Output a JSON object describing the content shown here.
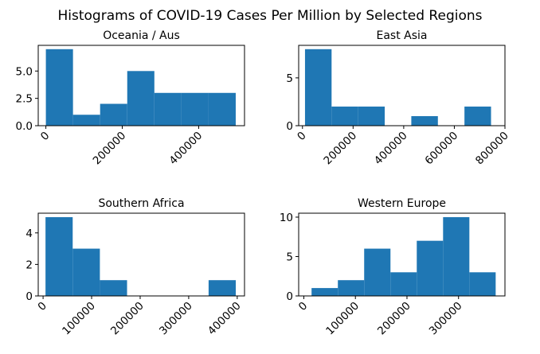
{
  "figure_title": "Histograms of COVID-19 Cases Per Million by Selected Regions",
  "bar_color": "#1f77b4",
  "chart_data": [
    {
      "type": "bar",
      "title": "Oceania / Aus",
      "xlabel": "",
      "ylabel": "",
      "xlim": [
        -20000,
        520000
      ],
      "ylim": [
        0,
        7.35
      ],
      "xticks": [
        0,
        200000,
        400000
      ],
      "yticks": [
        0.0,
        2.5,
        5.0
      ],
      "ytick_labels": [
        "0.0",
        "2.5",
        "5.0"
      ],
      "bins": [
        {
          "start": 0,
          "end": 71000,
          "count": 7
        },
        {
          "start": 71000,
          "end": 142000,
          "count": 1
        },
        {
          "start": 142000,
          "end": 213000,
          "count": 2
        },
        {
          "start": 213000,
          "end": 284000,
          "count": 5
        },
        {
          "start": 284000,
          "end": 355000,
          "count": 3
        },
        {
          "start": 355000,
          "end": 426000,
          "count": 3
        },
        {
          "start": 426000,
          "end": 497000,
          "count": 3
        }
      ]
    },
    {
      "type": "bar",
      "title": "East Asia",
      "xlabel": "",
      "ylabel": "",
      "xlim": [
        -15000,
        800000
      ],
      "ylim": [
        0,
        8.4
      ],
      "xticks": [
        0,
        200000,
        400000,
        600000,
        800000
      ],
      "yticks": [
        0,
        5
      ],
      "ytick_labels": [
        "0",
        "5"
      ],
      "bins": [
        {
          "start": 10000,
          "end": 115000,
          "count": 8
        },
        {
          "start": 115000,
          "end": 220000,
          "count": 2
        },
        {
          "start": 220000,
          "end": 325000,
          "count": 2
        },
        {
          "start": 325000,
          "end": 430000,
          "count": 0
        },
        {
          "start": 430000,
          "end": 535000,
          "count": 1
        },
        {
          "start": 535000,
          "end": 640000,
          "count": 0
        },
        {
          "start": 640000,
          "end": 745000,
          "count": 2
        }
      ]
    },
    {
      "type": "bar",
      "title": "Southern Africa",
      "xlabel": "",
      "ylabel": "",
      "xlim": [
        -10000,
        415000
      ],
      "ylim": [
        0,
        5.25
      ],
      "xticks": [
        0,
        100000,
        200000,
        300000,
        400000
      ],
      "yticks": [
        0,
        2,
        4
      ],
      "ytick_labels": [
        "0",
        "2",
        "4"
      ],
      "bins": [
        {
          "start": 5000,
          "end": 61000,
          "count": 5
        },
        {
          "start": 61000,
          "end": 117000,
          "count": 3
        },
        {
          "start": 117000,
          "end": 173000,
          "count": 1
        },
        {
          "start": 173000,
          "end": 229000,
          "count": 0
        },
        {
          "start": 229000,
          "end": 285000,
          "count": 0
        },
        {
          "start": 285000,
          "end": 341000,
          "count": 0
        },
        {
          "start": 341000,
          "end": 397000,
          "count": 1
        }
      ]
    },
    {
      "type": "bar",
      "title": "Western Europe",
      "xlabel": "",
      "ylabel": "",
      "xlim": [
        -10000,
        390000
      ],
      "ylim": [
        0,
        10.5
      ],
      "xticks": [
        0,
        100000,
        200000,
        300000
      ],
      "yticks": [
        0,
        5,
        10
      ],
      "ytick_labels": [
        "0",
        "5",
        "10"
      ],
      "bins": [
        {
          "start": 15000,
          "end": 66000,
          "count": 1
        },
        {
          "start": 66000,
          "end": 117000,
          "count": 2
        },
        {
          "start": 117000,
          "end": 168000,
          "count": 6
        },
        {
          "start": 168000,
          "end": 219000,
          "count": 3
        },
        {
          "start": 219000,
          "end": 270000,
          "count": 7
        },
        {
          "start": 270000,
          "end": 321000,
          "count": 10
        },
        {
          "start": 321000,
          "end": 372000,
          "count": 3
        }
      ]
    }
  ]
}
